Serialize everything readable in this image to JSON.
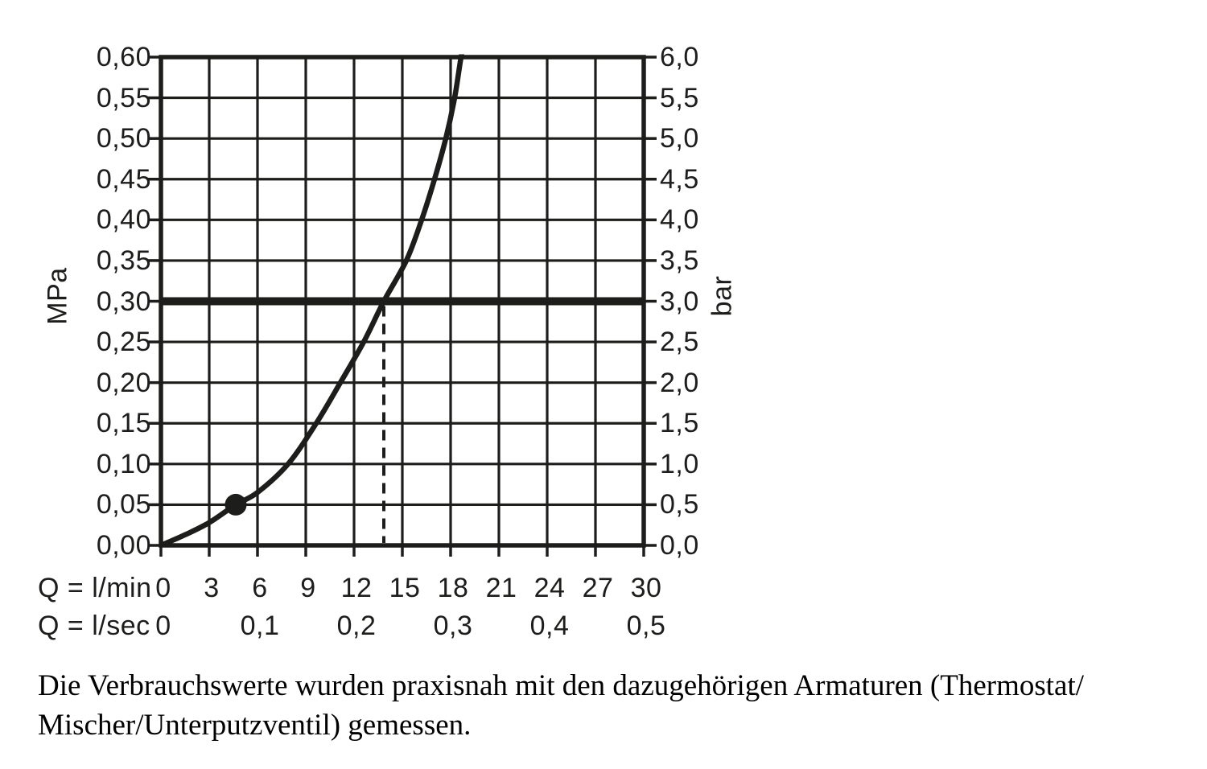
{
  "page": {
    "background": "#ffffff",
    "ink_color": "#1d1d1b"
  },
  "chart_data": {
    "type": "line",
    "title": "",
    "grid": true,
    "ink_color": "#1d1d1b",
    "y_axis_left": {
      "unit": "MPa",
      "min": 0,
      "max": 0.6,
      "step": 0.05,
      "tick_labels": [
        "0,60",
        "0,55",
        "0,50",
        "0,45",
        "0,40",
        "0,35",
        "0,30",
        "0,25",
        "0,20",
        "0,15",
        "0,10",
        "0,05",
        "0,00"
      ]
    },
    "y_axis_right": {
      "unit": "bar",
      "min": 0,
      "max": 6.0,
      "step": 0.5,
      "tick_labels": [
        "6,0",
        "5,5",
        "5,0",
        "4,5",
        "4,0",
        "3,5",
        "3,0",
        "2,5",
        "2,0",
        "1,5",
        "1,0",
        "0,5",
        "0,0"
      ]
    },
    "x_axis_rows": [
      {
        "label": "Q = l/min",
        "ticks": [
          {
            "text": "0",
            "q": 0
          },
          {
            "text": "3",
            "q": 3
          },
          {
            "text": "6",
            "q": 6
          },
          {
            "text": "9",
            "q": 9
          },
          {
            "text": "12",
            "q": 12
          },
          {
            "text": "15",
            "q": 15
          },
          {
            "text": "18",
            "q": 18
          },
          {
            "text": "21",
            "q": 21
          },
          {
            "text": "24",
            "q": 24
          },
          {
            "text": "27",
            "q": 27
          },
          {
            "text": "30",
            "q": 30
          }
        ]
      },
      {
        "label": "Q = l/sec",
        "ticks": [
          {
            "text": "0",
            "q": 0
          },
          {
            "text": "0,1",
            "q": 6
          },
          {
            "text": "0,2",
            "q": 12
          },
          {
            "text": "0,3",
            "q": 18
          },
          {
            "text": "0,4",
            "q": 24
          },
          {
            "text": "0,5",
            "q": 30
          }
        ]
      }
    ],
    "x_range_lmin": [
      0,
      30
    ],
    "x_gridline_step_lmin": 3,
    "series": [
      {
        "name": "flow-pressure-curve",
        "points_q_lmin_vs_mpa": [
          [
            0,
            0.0
          ],
          [
            1.5,
            0.013
          ],
          [
            3,
            0.028
          ],
          [
            4.65,
            0.05
          ],
          [
            6,
            0.065
          ],
          [
            7.9,
            0.1
          ],
          [
            9.65,
            0.15
          ],
          [
            11.15,
            0.2
          ],
          [
            12.6,
            0.25
          ],
          [
            13.85,
            0.3
          ],
          [
            15.25,
            0.35
          ],
          [
            16.2,
            0.4
          ],
          [
            17.0,
            0.45
          ],
          [
            17.7,
            0.5
          ],
          [
            18.25,
            0.55
          ],
          [
            18.65,
            0.6
          ],
          [
            18.9,
            0.62
          ]
        ]
      }
    ],
    "annotations": {
      "pressure_reference_line_mpa": 0.3,
      "pressure_reference_line_bar": 3.0,
      "dashed_drop_line_q_lmin": 13.85,
      "marker_dot": {
        "q_lmin": 4.65,
        "mpa": 0.05
      }
    }
  },
  "caption": {
    "line1": "Die Verbrauchswerte wurden praxisnah mit den dazugehörigen Armaturen (Thermostat/",
    "line2": "Mischer/Unterputzventil) gemessen."
  }
}
